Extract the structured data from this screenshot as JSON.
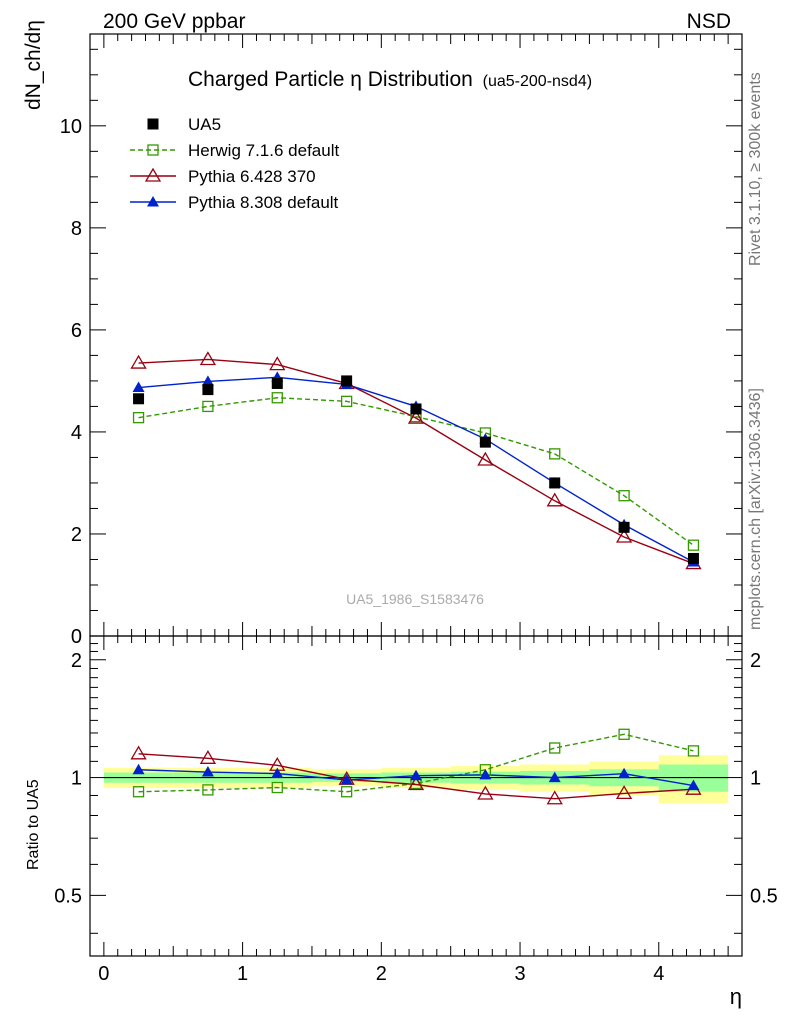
{
  "header": {
    "left": "200 GeV ppbar",
    "right": "NSD"
  },
  "title": {
    "main": "Charged Particle η Distribution",
    "sub": "(ua5-200-nsd4)"
  },
  "side_labels": {
    "rivet": "Rivet 3.1.10, ≥ 300k events",
    "mcplots": "mcplots.cern.ch [arXiv:1306.3436]"
  },
  "watermark": "UA5_1986_S1583476",
  "colors": {
    "data": "#000000",
    "herwig": "#339900",
    "pythia6": "#990011",
    "pythia8": "#0022cc",
    "band_yellow": "#ffff99",
    "band_green": "#99ff99"
  },
  "chart_data": [
    {
      "type": "line",
      "panel": "main",
      "ylabel": "dN_ch/dη",
      "xlim": [
        -0.1,
        4.6
      ],
      "ylim": [
        0,
        11.8
      ],
      "yticks": [
        0,
        2,
        4,
        6,
        8,
        10
      ],
      "legend_position": "top-left",
      "x": [
        0.25,
        0.75,
        1.25,
        1.75,
        2.25,
        2.75,
        3.25,
        3.75,
        4.25
      ],
      "series": [
        {
          "name": "UA5",
          "style": "data",
          "values": [
            4.65,
            4.83,
            4.95,
            5.0,
            4.45,
            3.8,
            3.0,
            2.13,
            1.52
          ]
        },
        {
          "name": "Herwig 7.1.6 default",
          "style": "herwig",
          "values": [
            4.28,
            4.5,
            4.67,
            4.6,
            4.3,
            3.98,
            3.57,
            2.75,
            1.78
          ]
        },
        {
          "name": "Pythia 6.428 370",
          "style": "pythia6",
          "values": [
            5.35,
            5.42,
            5.32,
            4.95,
            4.27,
            3.45,
            2.65,
            1.94,
            1.42
          ]
        },
        {
          "name": "Pythia 8.308 default",
          "style": "pythia8",
          "values": [
            4.87,
            4.99,
            5.07,
            4.93,
            4.5,
            3.86,
            3.0,
            2.18,
            1.45
          ]
        }
      ]
    },
    {
      "type": "line",
      "panel": "ratio",
      "ylabel": "Ratio to UA5",
      "xlabel": "η",
      "xlim": [
        -0.1,
        4.6
      ],
      "ylim": [
        0.35,
        2.3
      ],
      "yticks": [
        0.5,
        1,
        2
      ],
      "xticks": [
        0,
        1,
        2,
        3,
        4
      ],
      "x": [
        0.25,
        0.75,
        1.25,
        1.75,
        2.25,
        2.75,
        3.25,
        3.75,
        4.25
      ],
      "bands": {
        "edges": [
          0,
          0.5,
          1,
          1.5,
          2,
          2.5,
          3,
          3.5,
          4,
          4.5
        ],
        "yellow_halfwidth": [
          0.06,
          0.06,
          0.06,
          0.05,
          0.06,
          0.07,
          0.08,
          0.1,
          0.14
        ],
        "green_halfwidth": [
          0.03,
          0.03,
          0.03,
          0.025,
          0.03,
          0.035,
          0.04,
          0.05,
          0.08
        ]
      },
      "series": [
        {
          "name": "Herwig 7.1.6 default",
          "style": "herwig",
          "values": [
            0.92,
            0.93,
            0.943,
            0.92,
            0.966,
            1.047,
            1.19,
            1.29,
            1.17
          ]
        },
        {
          "name": "Pythia 6.428 370",
          "style": "pythia6",
          "values": [
            1.15,
            1.12,
            1.075,
            0.99,
            0.96,
            0.908,
            0.883,
            0.911,
            0.934
          ]
        },
        {
          "name": "Pythia 8.308 default",
          "style": "pythia8",
          "values": [
            1.047,
            1.033,
            1.024,
            0.986,
            1.011,
            1.016,
            1.0,
            1.023,
            0.954
          ]
        }
      ]
    }
  ]
}
